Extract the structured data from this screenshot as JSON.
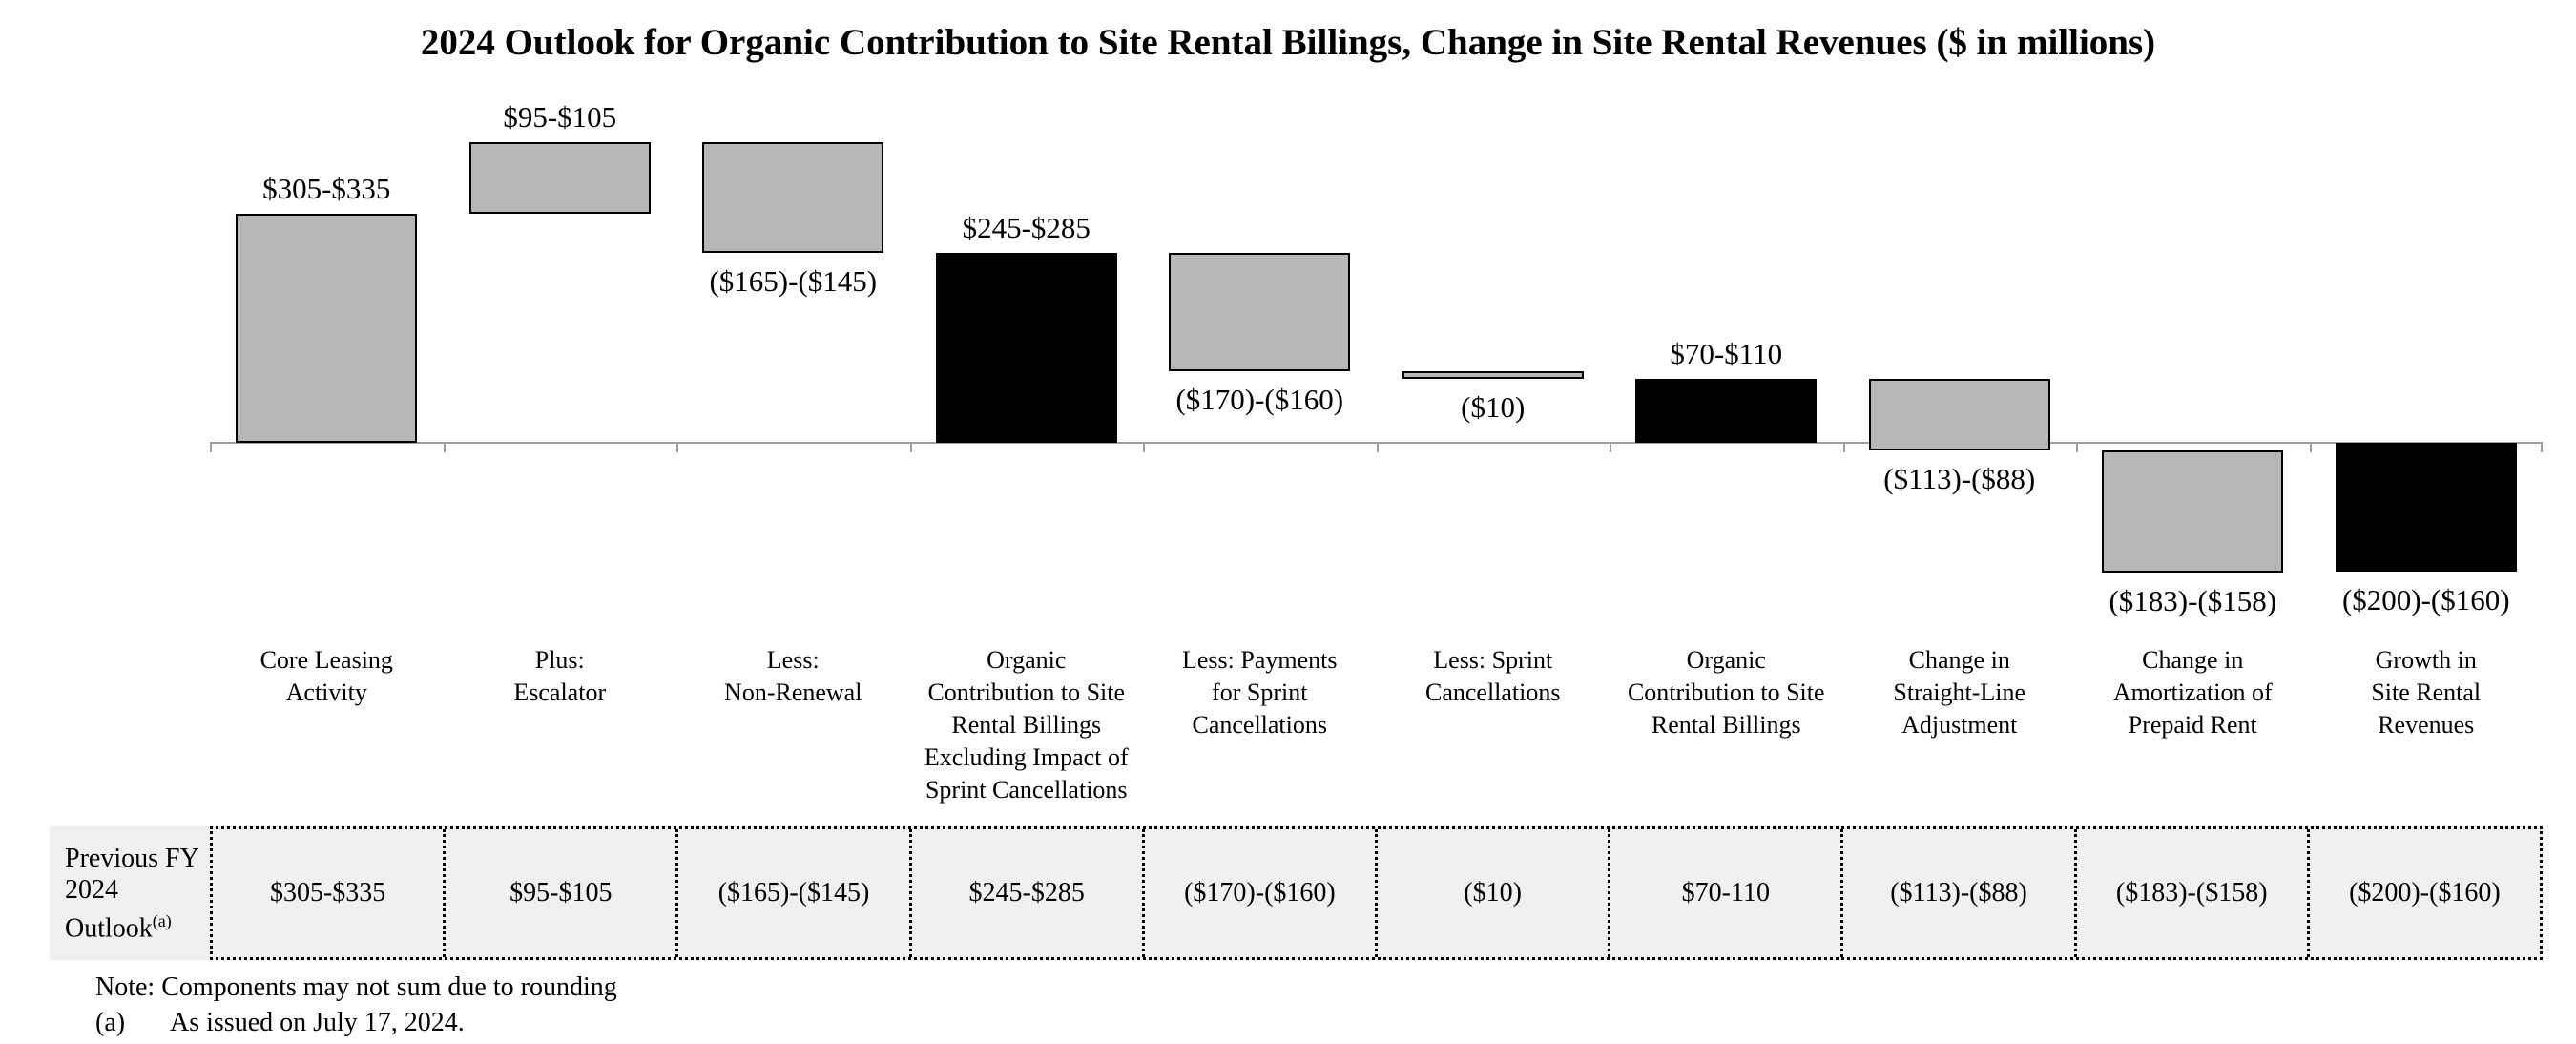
{
  "title": "2024 Outlook for Organic Contribution to Site Rental Billings, Change in Site Rental Revenues ($ in millions)",
  "chart_data": {
    "type": "waterfall",
    "unit": "$ in millions",
    "baseline": 0,
    "grid": false,
    "legend": false,
    "categories": [
      [
        "Core Leasing",
        "Activity"
      ],
      [
        "Plus:",
        "Escalator"
      ],
      [
        "Less:",
        "Non-Renewal"
      ],
      [
        "Organic",
        "Contribution to Site",
        "Rental Billings",
        "Excluding Impact of",
        "Sprint Cancellations"
      ],
      [
        "Less: Payments",
        "for Sprint",
        "Cancellations"
      ],
      [
        "Less: Sprint",
        "Cancellations"
      ],
      [
        "Organic",
        "Contribution to Site",
        "Rental Billings"
      ],
      [
        "Change in",
        "Straight-Line",
        "Adjustment"
      ],
      [
        "Change in",
        "Amortization of",
        "Prepaid Rent"
      ],
      [
        "Growth in",
        "Site Rental",
        "Revenues"
      ]
    ],
    "bars": [
      {
        "name": "core-leasing-activity",
        "value_label": "$305-$335",
        "low": 305,
        "high": 335,
        "color": "gray",
        "total": false,
        "label_side": "above"
      },
      {
        "name": "escalator",
        "value_label": "$95-$105",
        "low": 95,
        "high": 105,
        "color": "gray",
        "total": false,
        "label_side": "above"
      },
      {
        "name": "non-renewal",
        "value_label": "($165)-($145)",
        "low": -165,
        "high": -145,
        "color": "gray",
        "total": false,
        "label_side": "below"
      },
      {
        "name": "organic-contribution-excl-sprint",
        "value_label": "$245-$285",
        "low": 245,
        "high": 285,
        "color": "black",
        "total": true,
        "label_side": "above"
      },
      {
        "name": "payments-for-sprint-cancellations",
        "value_label": "($170)-($160)",
        "low": -170,
        "high": -160,
        "color": "gray",
        "total": false,
        "label_side": "below"
      },
      {
        "name": "sprint-cancellations",
        "value_label": "($10)",
        "low": -10,
        "high": -10,
        "color": "gray",
        "total": false,
        "label_side": "below"
      },
      {
        "name": "organic-contribution",
        "value_label": "$70-$110",
        "low": 70,
        "high": 110,
        "color": "black",
        "total": true,
        "label_side": "above"
      },
      {
        "name": "straight-line-adjustment",
        "value_label": "($113)-($88)",
        "low": -113,
        "high": -88,
        "color": "gray",
        "total": false,
        "label_side": "below"
      },
      {
        "name": "amortization-of-prepaid-rent",
        "value_label": "($183)-($158)",
        "low": -183,
        "high": -158,
        "color": "gray",
        "total": false,
        "label_side": "below"
      },
      {
        "name": "growth-in-site-rental-revenues",
        "value_label": "($200)-($160)",
        "low": -200,
        "high": -160,
        "color": "black",
        "total": true,
        "label_side": "below"
      }
    ]
  },
  "table": {
    "row_label": "Previous FY 2024 Outlook",
    "row_label_superscript": "(a)",
    "values": [
      "$305-$335",
      "$95-$105",
      "($165)-($145)",
      "$245-$285",
      "($170)-($160)",
      "($10)",
      "$70-110",
      "($113)-($88)",
      "($183)-($158)",
      "($200)-($160)"
    ]
  },
  "notes": {
    "rounding": "Note: Components may not sum due to rounding",
    "footnote_marker": "(a)",
    "footnote_text": "As issued on July 17, 2024."
  },
  "colors": {
    "bar_gray": "#b7b7b7",
    "bar_black": "#000000",
    "table_bg": "#f0f0f0",
    "axis": "#9d9d9d"
  }
}
